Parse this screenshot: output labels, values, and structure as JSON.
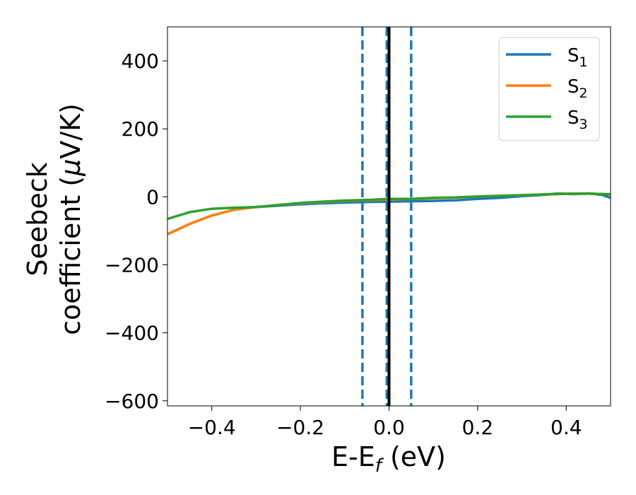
{
  "chart_data": {
    "type": "line",
    "xlabel": {
      "main": "E-E",
      "sub": "f",
      "unit": " (eV)"
    },
    "ylabel": {
      "line1": "Seebeck",
      "line2": "coefficient  (",
      "mu": "μ",
      "unit": "V/K)"
    },
    "xlim": [
      -0.5,
      0.5
    ],
    "ylim": [
      -615,
      500
    ],
    "xticks": [
      -0.4,
      -0.2,
      0.0,
      0.2,
      0.4
    ],
    "xtick_labels": [
      "−0.4",
      "−0.2",
      "0.0",
      "0.2",
      "0.4"
    ],
    "yticks": [
      -600,
      -400,
      -200,
      0,
      200,
      400
    ],
    "ytick_labels": [
      "−600",
      "−400",
      "−200",
      "0",
      "200",
      "400"
    ],
    "grid": false,
    "legend_position": "top-right",
    "series": [
      {
        "name": "S",
        "sub": "1",
        "color": "#1f77b4",
        "x": [
          -0.5,
          -0.45,
          -0.4,
          -0.35,
          -0.3,
          -0.25,
          -0.2,
          -0.15,
          -0.1,
          -0.05,
          0.0,
          0.05,
          0.1,
          0.15,
          0.2,
          0.25,
          0.3,
          0.35,
          0.38,
          0.42,
          0.45,
          0.48,
          0.5
        ],
        "y": [
          -110,
          -80,
          -55,
          -38,
          -30,
          -26,
          -22,
          -19,
          -17,
          -15,
          -14,
          -13,
          -12,
          -10,
          -6,
          -3,
          2,
          6,
          10,
          8,
          10,
          6,
          -3
        ]
      },
      {
        "name": "S",
        "sub": "2",
        "color": "#ff7f0e",
        "x": [
          -0.5,
          -0.45,
          -0.4,
          -0.35,
          -0.3,
          -0.25,
          -0.2,
          -0.15,
          -0.1,
          -0.05,
          0.0,
          0.05,
          0.1,
          0.15,
          0.2,
          0.25,
          0.3,
          0.35,
          0.4,
          0.45,
          0.5
        ],
        "y": [
          -110,
          -80,
          -55,
          -38,
          -30,
          -24,
          -19,
          -15,
          -12,
          -10,
          -8,
          -6,
          -4,
          -2,
          1,
          3,
          5,
          7,
          9,
          9,
          8
        ]
      },
      {
        "name": "S",
        "sub": "3",
        "color": "#2ca02c",
        "x": [
          -0.5,
          -0.45,
          -0.4,
          -0.35,
          -0.3,
          -0.25,
          -0.2,
          -0.15,
          -0.1,
          -0.05,
          0.0,
          0.05,
          0.1,
          0.15,
          0.2,
          0.25,
          0.3,
          0.35,
          0.4,
          0.45,
          0.5
        ],
        "y": [
          -65,
          -45,
          -35,
          -32,
          -30,
          -24,
          -18,
          -14,
          -11,
          -9,
          -6,
          -6,
          -3,
          -2,
          1,
          3,
          5,
          7,
          9,
          10,
          7
        ]
      }
    ],
    "vertical_lines": [
      {
        "x": -0.06,
        "style": "dashed",
        "color": "#1f77b4"
      },
      {
        "x": -0.005,
        "style": "dashed",
        "color": "#1f77b4"
      },
      {
        "x": 0.05,
        "style": "dashed",
        "color": "#1f77b4"
      },
      {
        "x": 0.0,
        "style": "solid",
        "color": "#000000"
      }
    ]
  }
}
